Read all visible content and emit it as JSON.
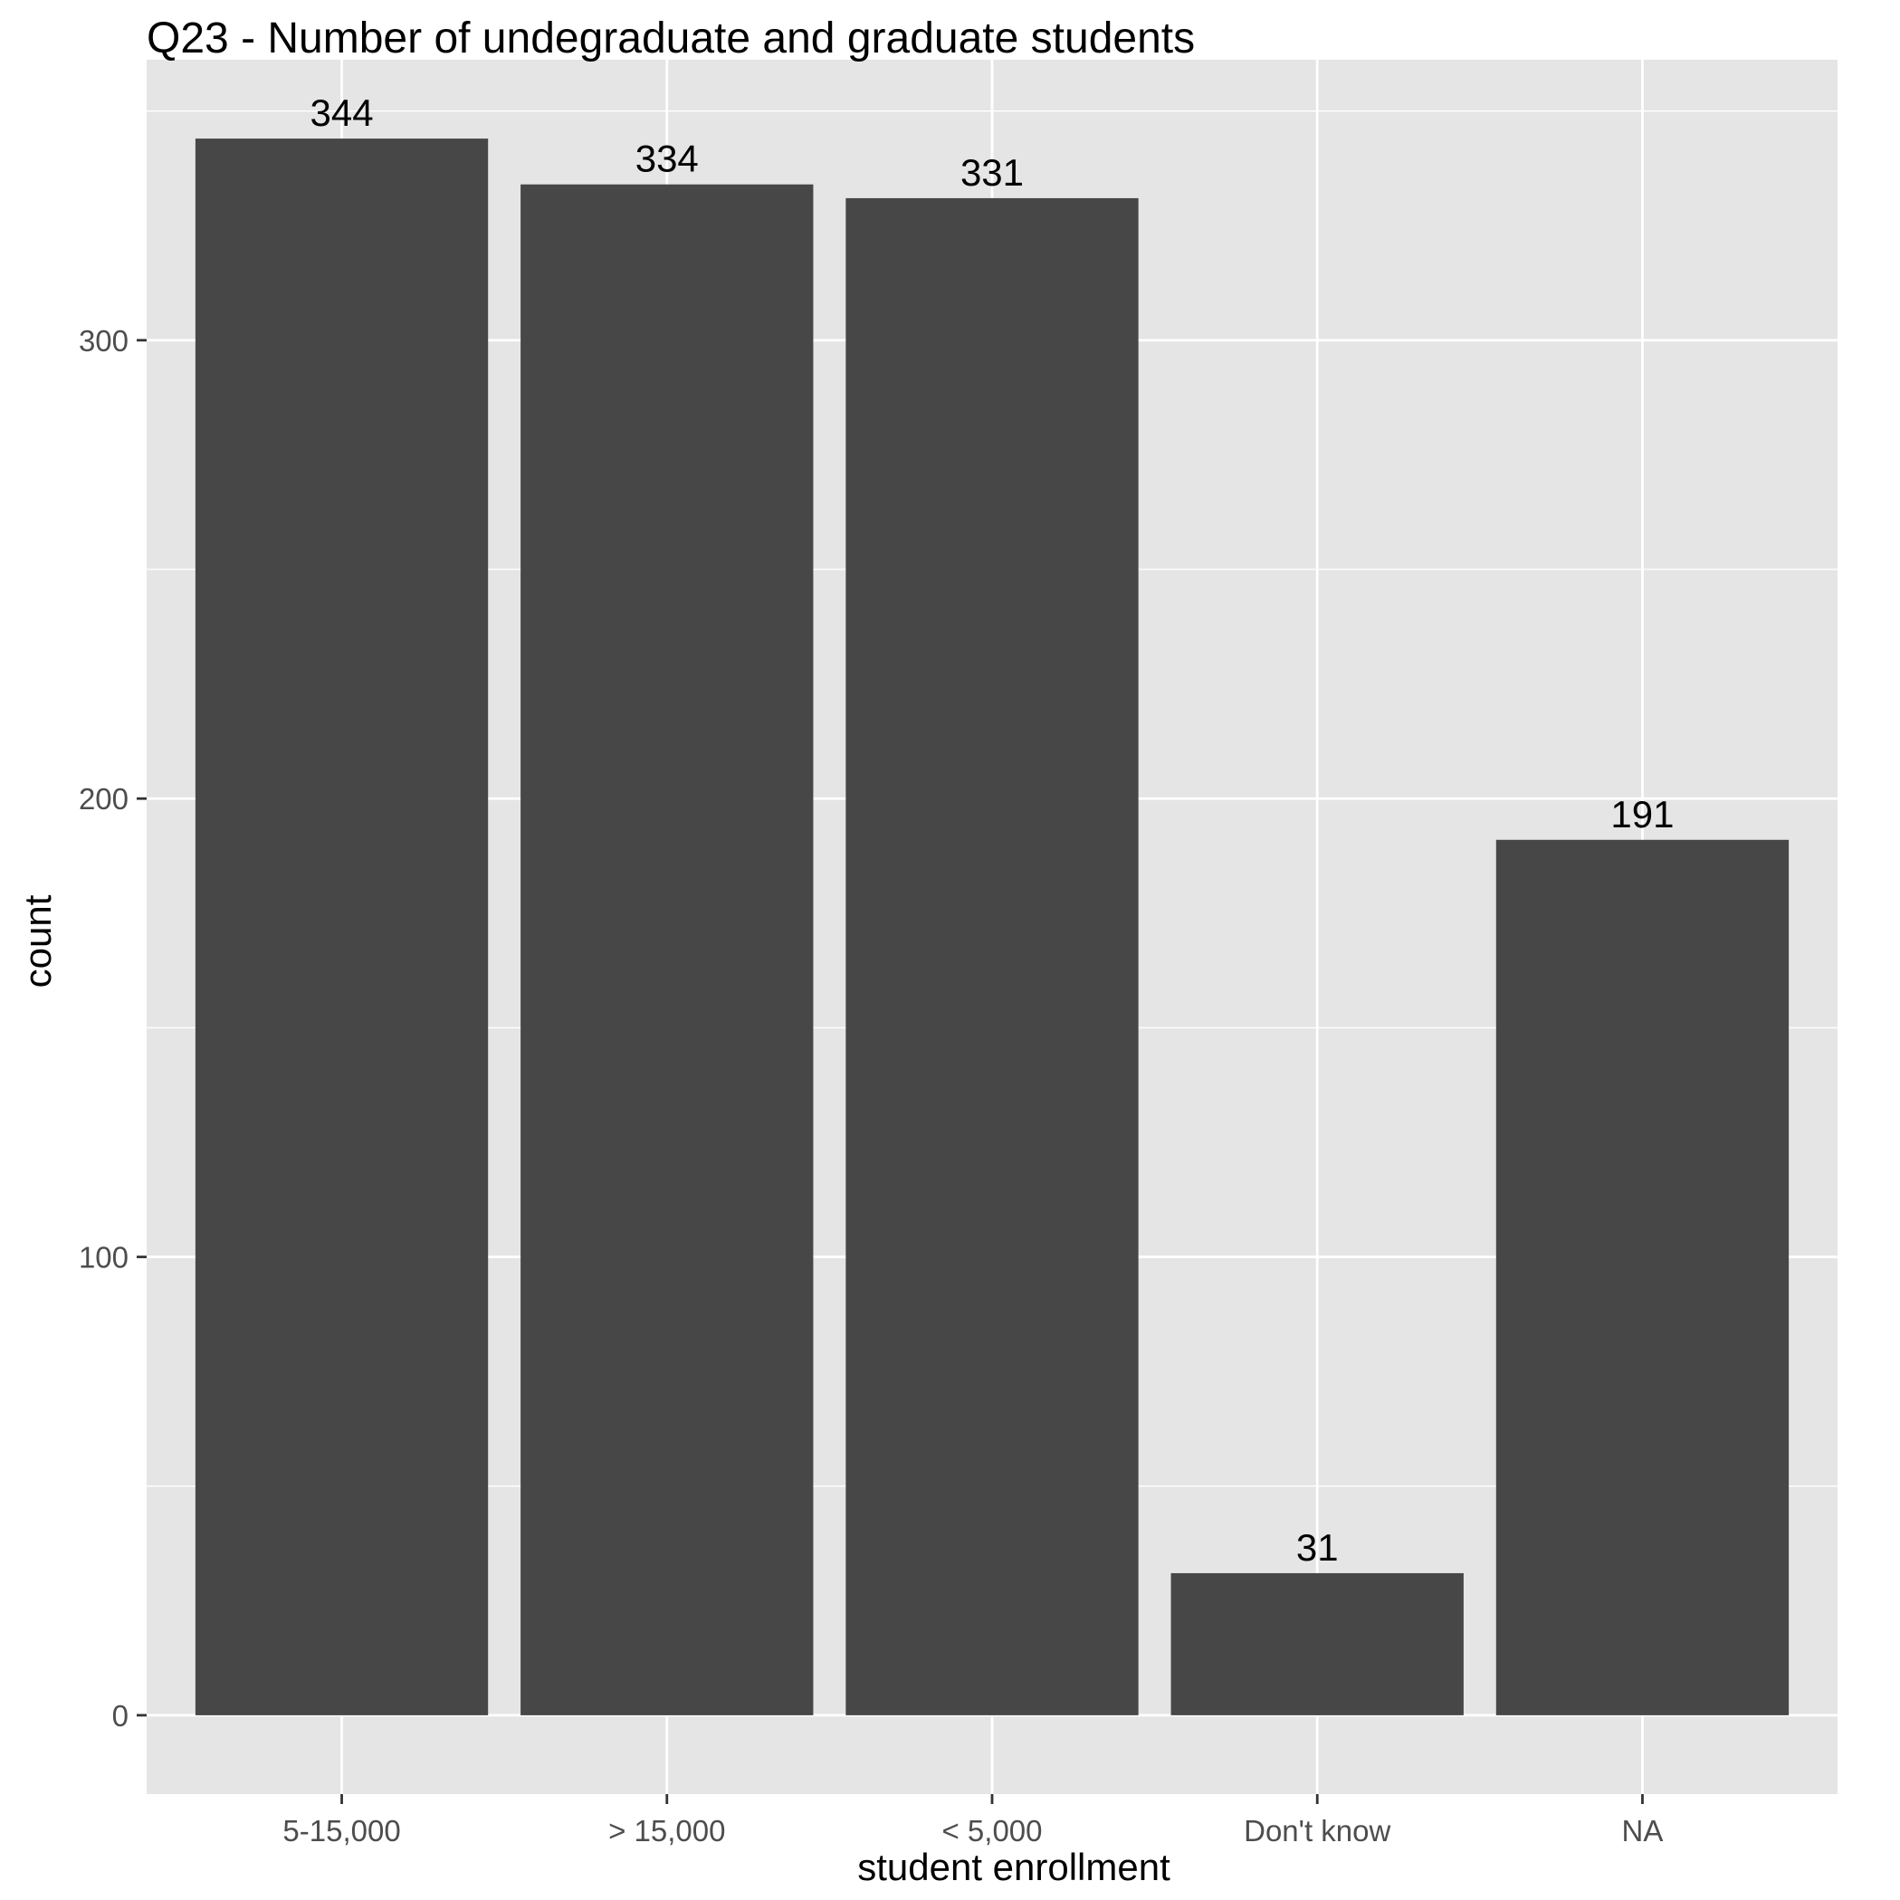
{
  "chart_data": {
    "type": "bar",
    "title": "Q23 - Number of undegraduate and graduate students",
    "xlabel": "student enrollment",
    "ylabel": "count",
    "categories": [
      "5-15,000",
      "> 15,000",
      "< 5,000",
      "Don't know",
      "NA"
    ],
    "values": [
      344,
      334,
      331,
      31,
      191
    ],
    "data_labels": [
      "344",
      "334",
      "331",
      "31",
      "191"
    ],
    "ylim": [
      -17.2,
      361.2
    ],
    "y_ticks": [
      0,
      100,
      200,
      300
    ],
    "y_tick_labels": [
      "0",
      "100",
      "200",
      "300"
    ],
    "grid": true,
    "legend": "none",
    "colors": {
      "bar": "#474747",
      "panel_background": "#e5e5e5",
      "grid": "#ffffff",
      "text": "#000000",
      "axis_text": "#4d4d4d",
      "tick": "#333333"
    }
  }
}
